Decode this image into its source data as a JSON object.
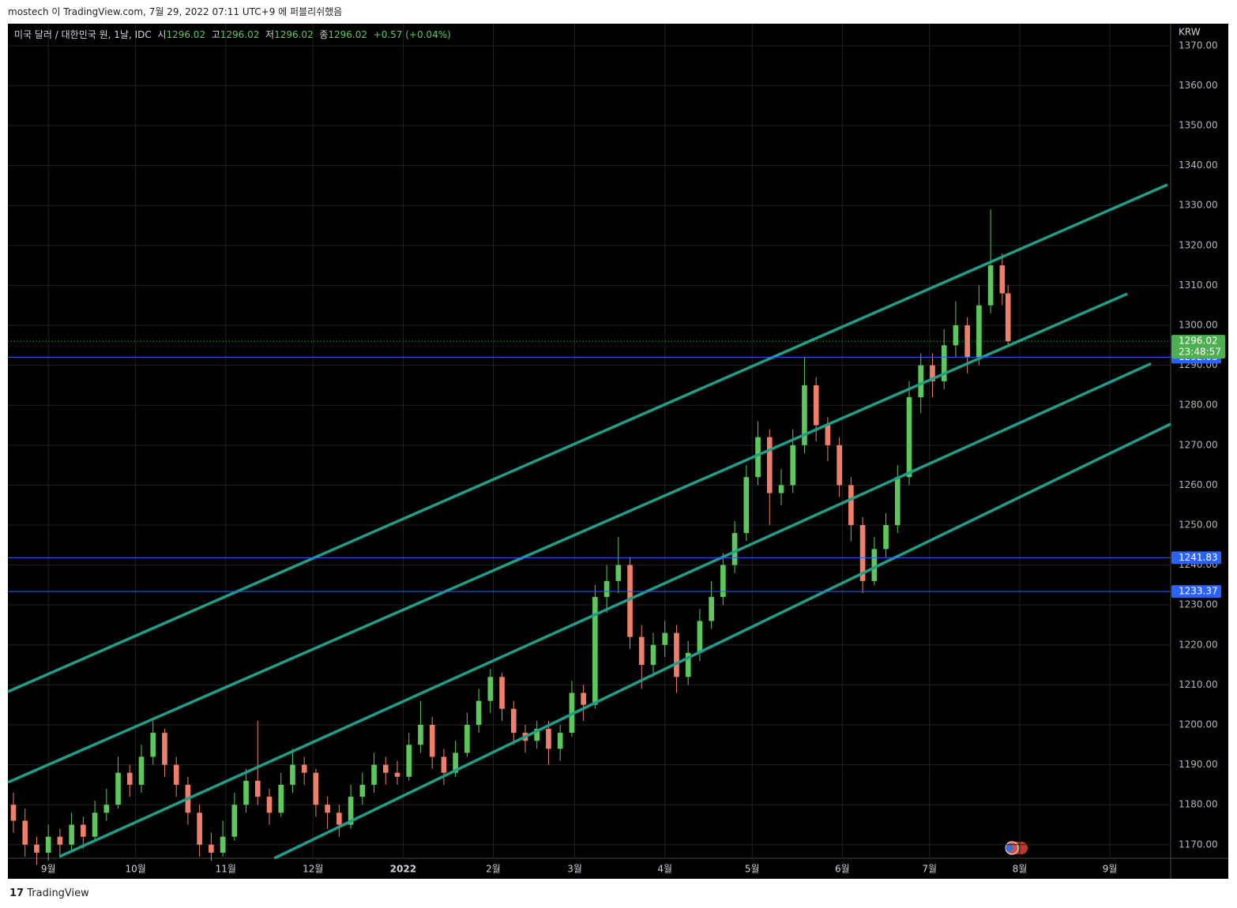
{
  "header": "mostech 이 TradingView.com, 7월 29, 2022 07:11 UTC+9 에 퍼블리쉬했음",
  "footer": "TradingView",
  "chart_data": {
    "type": "candlestick",
    "title": "미국 달러 / 대한민국 원, 1날, IDC",
    "ohlc_legend": {
      "open_label": "시",
      "open": 1296.02,
      "high_label": "고",
      "high": 1296.02,
      "low_label": "저",
      "low": 1296.02,
      "close_label": "종",
      "close": 1296.02,
      "change": "+0.57 (+0.04%)"
    },
    "currency": "KRW",
    "up_color": "#5cc85c",
    "down_color": "#f07f6a",
    "trend_color": "#1f9e89",
    "level_color": "#2962ff",
    "grid": true,
    "xlim": [
      -13.9,
      385.9
    ],
    "xticks": [
      {
        "value": 0,
        "label": "9월"
      },
      {
        "value": 30,
        "label": "10월"
      },
      {
        "value": 61,
        "label": "11월"
      },
      {
        "value": 91,
        "label": "12월"
      },
      {
        "value": 122,
        "label": "2022"
      },
      {
        "value": 153,
        "label": "2월"
      },
      {
        "value": 181,
        "label": "3월"
      },
      {
        "value": 212,
        "label": "4월"
      },
      {
        "value": 242,
        "label": "5월"
      },
      {
        "value": 273,
        "label": "6월"
      },
      {
        "value": 303,
        "label": "7월"
      },
      {
        "value": 334,
        "label": "8월"
      },
      {
        "value": 365,
        "label": "9월"
      }
    ],
    "ylim": [
      1166.6,
      1375.5
    ],
    "yticks": [
      {
        "value": 1170,
        "label": "1170.00"
      },
      {
        "value": 1180,
        "label": "1180.00"
      },
      {
        "value": 1190,
        "label": "1190.00"
      },
      {
        "value": 1200,
        "label": "1200.00"
      },
      {
        "value": 1210,
        "label": "1210.00"
      },
      {
        "value": 1220,
        "label": "1220.00"
      },
      {
        "value": 1230,
        "label": "1230.00"
      },
      {
        "value": 1240,
        "label": "1240.00"
      },
      {
        "value": 1250,
        "label": "1250.00"
      },
      {
        "value": 1260,
        "label": "1260.00"
      },
      {
        "value": 1270,
        "label": "1270.00"
      },
      {
        "value": 1280,
        "label": "1280.00"
      },
      {
        "value": 1290,
        "label": "1290.00"
      },
      {
        "value": 1300,
        "label": "1300.00"
      },
      {
        "value": 1310,
        "label": "1310.00"
      },
      {
        "value": 1320,
        "label": "1320.00"
      },
      {
        "value": 1330,
        "label": "1330.00"
      },
      {
        "value": 1340,
        "label": "1340.00"
      },
      {
        "value": 1350,
        "label": "1350.00"
      },
      {
        "value": 1360,
        "label": "1360.00"
      },
      {
        "value": 1370,
        "label": "1370.00"
      }
    ],
    "x": [
      -12,
      -8,
      -4,
      0,
      4,
      8,
      12,
      16,
      20,
      24,
      28,
      32,
      36,
      40,
      44,
      48,
      52,
      56,
      60,
      64,
      68,
      72,
      76,
      80,
      84,
      88,
      92,
      96,
      100,
      104,
      108,
      112,
      116,
      120,
      124,
      128,
      132,
      136,
      140,
      144,
      148,
      152,
      156,
      160,
      164,
      168,
      172,
      176,
      180,
      184,
      188,
      192,
      196,
      200,
      204,
      208,
      212,
      216,
      220,
      224,
      228,
      232,
      236,
      240,
      244,
      248,
      252,
      256,
      260,
      264,
      268,
      272,
      276,
      280,
      284,
      288,
      292,
      296,
      300,
      304,
      308,
      312,
      316,
      320,
      324,
      328,
      330
    ],
    "open": [
      1180,
      1176,
      1170,
      1168,
      1172,
      1170,
      1175,
      1172,
      1178,
      1180,
      1188,
      1185,
      1192,
      1198,
      1190,
      1185,
      1178,
      1170,
      1168,
      1172,
      1180,
      1186,
      1182,
      1178,
      1185,
      1190,
      1188,
      1180,
      1178,
      1175,
      1182,
      1185,
      1190,
      1188,
      1187,
      1195,
      1200,
      1192,
      1188,
      1193,
      1200,
      1206,
      1212,
      1204,
      1198,
      1196,
      1199,
      1194,
      1198,
      1208,
      1205,
      1232,
      1236,
      1240,
      1222,
      1215,
      1220,
      1223,
      1212,
      1218,
      1226,
      1232,
      1240,
      1248,
      1262,
      1272,
      1258,
      1260,
      1270,
      1285,
      1275,
      1270,
      1260,
      1250,
      1236,
      1244,
      1250,
      1262,
      1282,
      1290,
      1286,
      1295,
      1300,
      1292,
      1305,
      1315,
      1308
    ],
    "high": [
      1183,
      1179,
      1172,
      1175,
      1174,
      1178,
      1177,
      1181,
      1184,
      1192,
      1190,
      1195,
      1201,
      1199,
      1192,
      1187,
      1180,
      1173,
      1176,
      1183,
      1189,
      1201,
      1184,
      1188,
      1194,
      1192,
      1189,
      1182,
      1180,
      1185,
      1188,
      1193,
      1192,
      1191,
      1198,
      1206,
      1202,
      1194,
      1196,
      1203,
      1209,
      1214,
      1213,
      1206,
      1200,
      1201,
      1201,
      1200,
      1211,
      1210,
      1235,
      1240,
      1247,
      1242,
      1225,
      1223,
      1226,
      1225,
      1221,
      1229,
      1236,
      1243,
      1251,
      1265,
      1276,
      1274,
      1264,
      1274,
      1292,
      1287,
      1277,
      1272,
      1262,
      1252,
      1247,
      1253,
      1265,
      1286,
      1293,
      1293,
      1299,
      1306,
      1302,
      1310,
      1329,
      1318,
      1310
    ],
    "low": [
      1173,
      1167,
      1165,
      1166,
      1167,
      1168,
      1169,
      1171,
      1176,
      1179,
      1182,
      1183,
      1190,
      1187,
      1182,
      1175,
      1167,
      1166,
      1167,
      1171,
      1178,
      1180,
      1175,
      1177,
      1183,
      1185,
      1177,
      1174,
      1172,
      1174,
      1180,
      1183,
      1185,
      1185,
      1186,
      1193,
      1189,
      1185,
      1187,
      1192,
      1198,
      1203,
      1201,
      1195,
      1193,
      1194,
      1190,
      1191,
      1197,
      1201,
      1204,
      1228,
      1233,
      1219,
      1209,
      1212,
      1217,
      1208,
      1210,
      1216,
      1224,
      1230,
      1238,
      1246,
      1260,
      1250,
      1255,
      1258,
      1268,
      1271,
      1266,
      1257,
      1246,
      1233,
      1235,
      1242,
      1248,
      1260,
      1278,
      1282,
      1284,
      1292,
      1288,
      1290,
      1303,
      1305,
      1295
    ],
    "close": [
      1176,
      1170,
      1168,
      1172,
      1170,
      1175,
      1172,
      1178,
      1180,
      1188,
      1185,
      1192,
      1198,
      1190,
      1185,
      1178,
      1170,
      1168,
      1172,
      1180,
      1186,
      1182,
      1178,
      1185,
      1190,
      1188,
      1180,
      1178,
      1175,
      1182,
      1185,
      1190,
      1188,
      1187,
      1195,
      1200,
      1192,
      1188,
      1193,
      1200,
      1206,
      1212,
      1204,
      1198,
      1196,
      1199,
      1194,
      1198,
      1208,
      1205,
      1232,
      1236,
      1240,
      1222,
      1215,
      1220,
      1223,
      1212,
      1218,
      1226,
      1232,
      1240,
      1248,
      1262,
      1272,
      1258,
      1260,
      1270,
      1285,
      1275,
      1270,
      1260,
      1250,
      1236,
      1244,
      1250,
      1262,
      1282,
      1290,
      1286,
      1295,
      1300,
      1292,
      1305,
      1315,
      1308,
      1296.02
    ],
    "trendlines": [
      {
        "x": [
          -13.9,
          384.8
        ],
        "y": [
          1208.3,
          1335.2
        ]
      },
      {
        "x": [
          -13.9,
          371
        ],
        "y": [
          1185.6,
          1307.9
        ]
      },
      {
        "x": [
          3.8,
          379.1
        ],
        "y": [
          1167.0,
          1290.4
        ]
      },
      {
        "x": [
          77.7,
          385.9
        ],
        "y": [
          1166.6,
          1275.3
        ]
      }
    ],
    "levels": [
      1292.03,
      1241.83,
      1233.37
    ],
    "last_price": 1296.02,
    "countdown": "23:48:57"
  }
}
